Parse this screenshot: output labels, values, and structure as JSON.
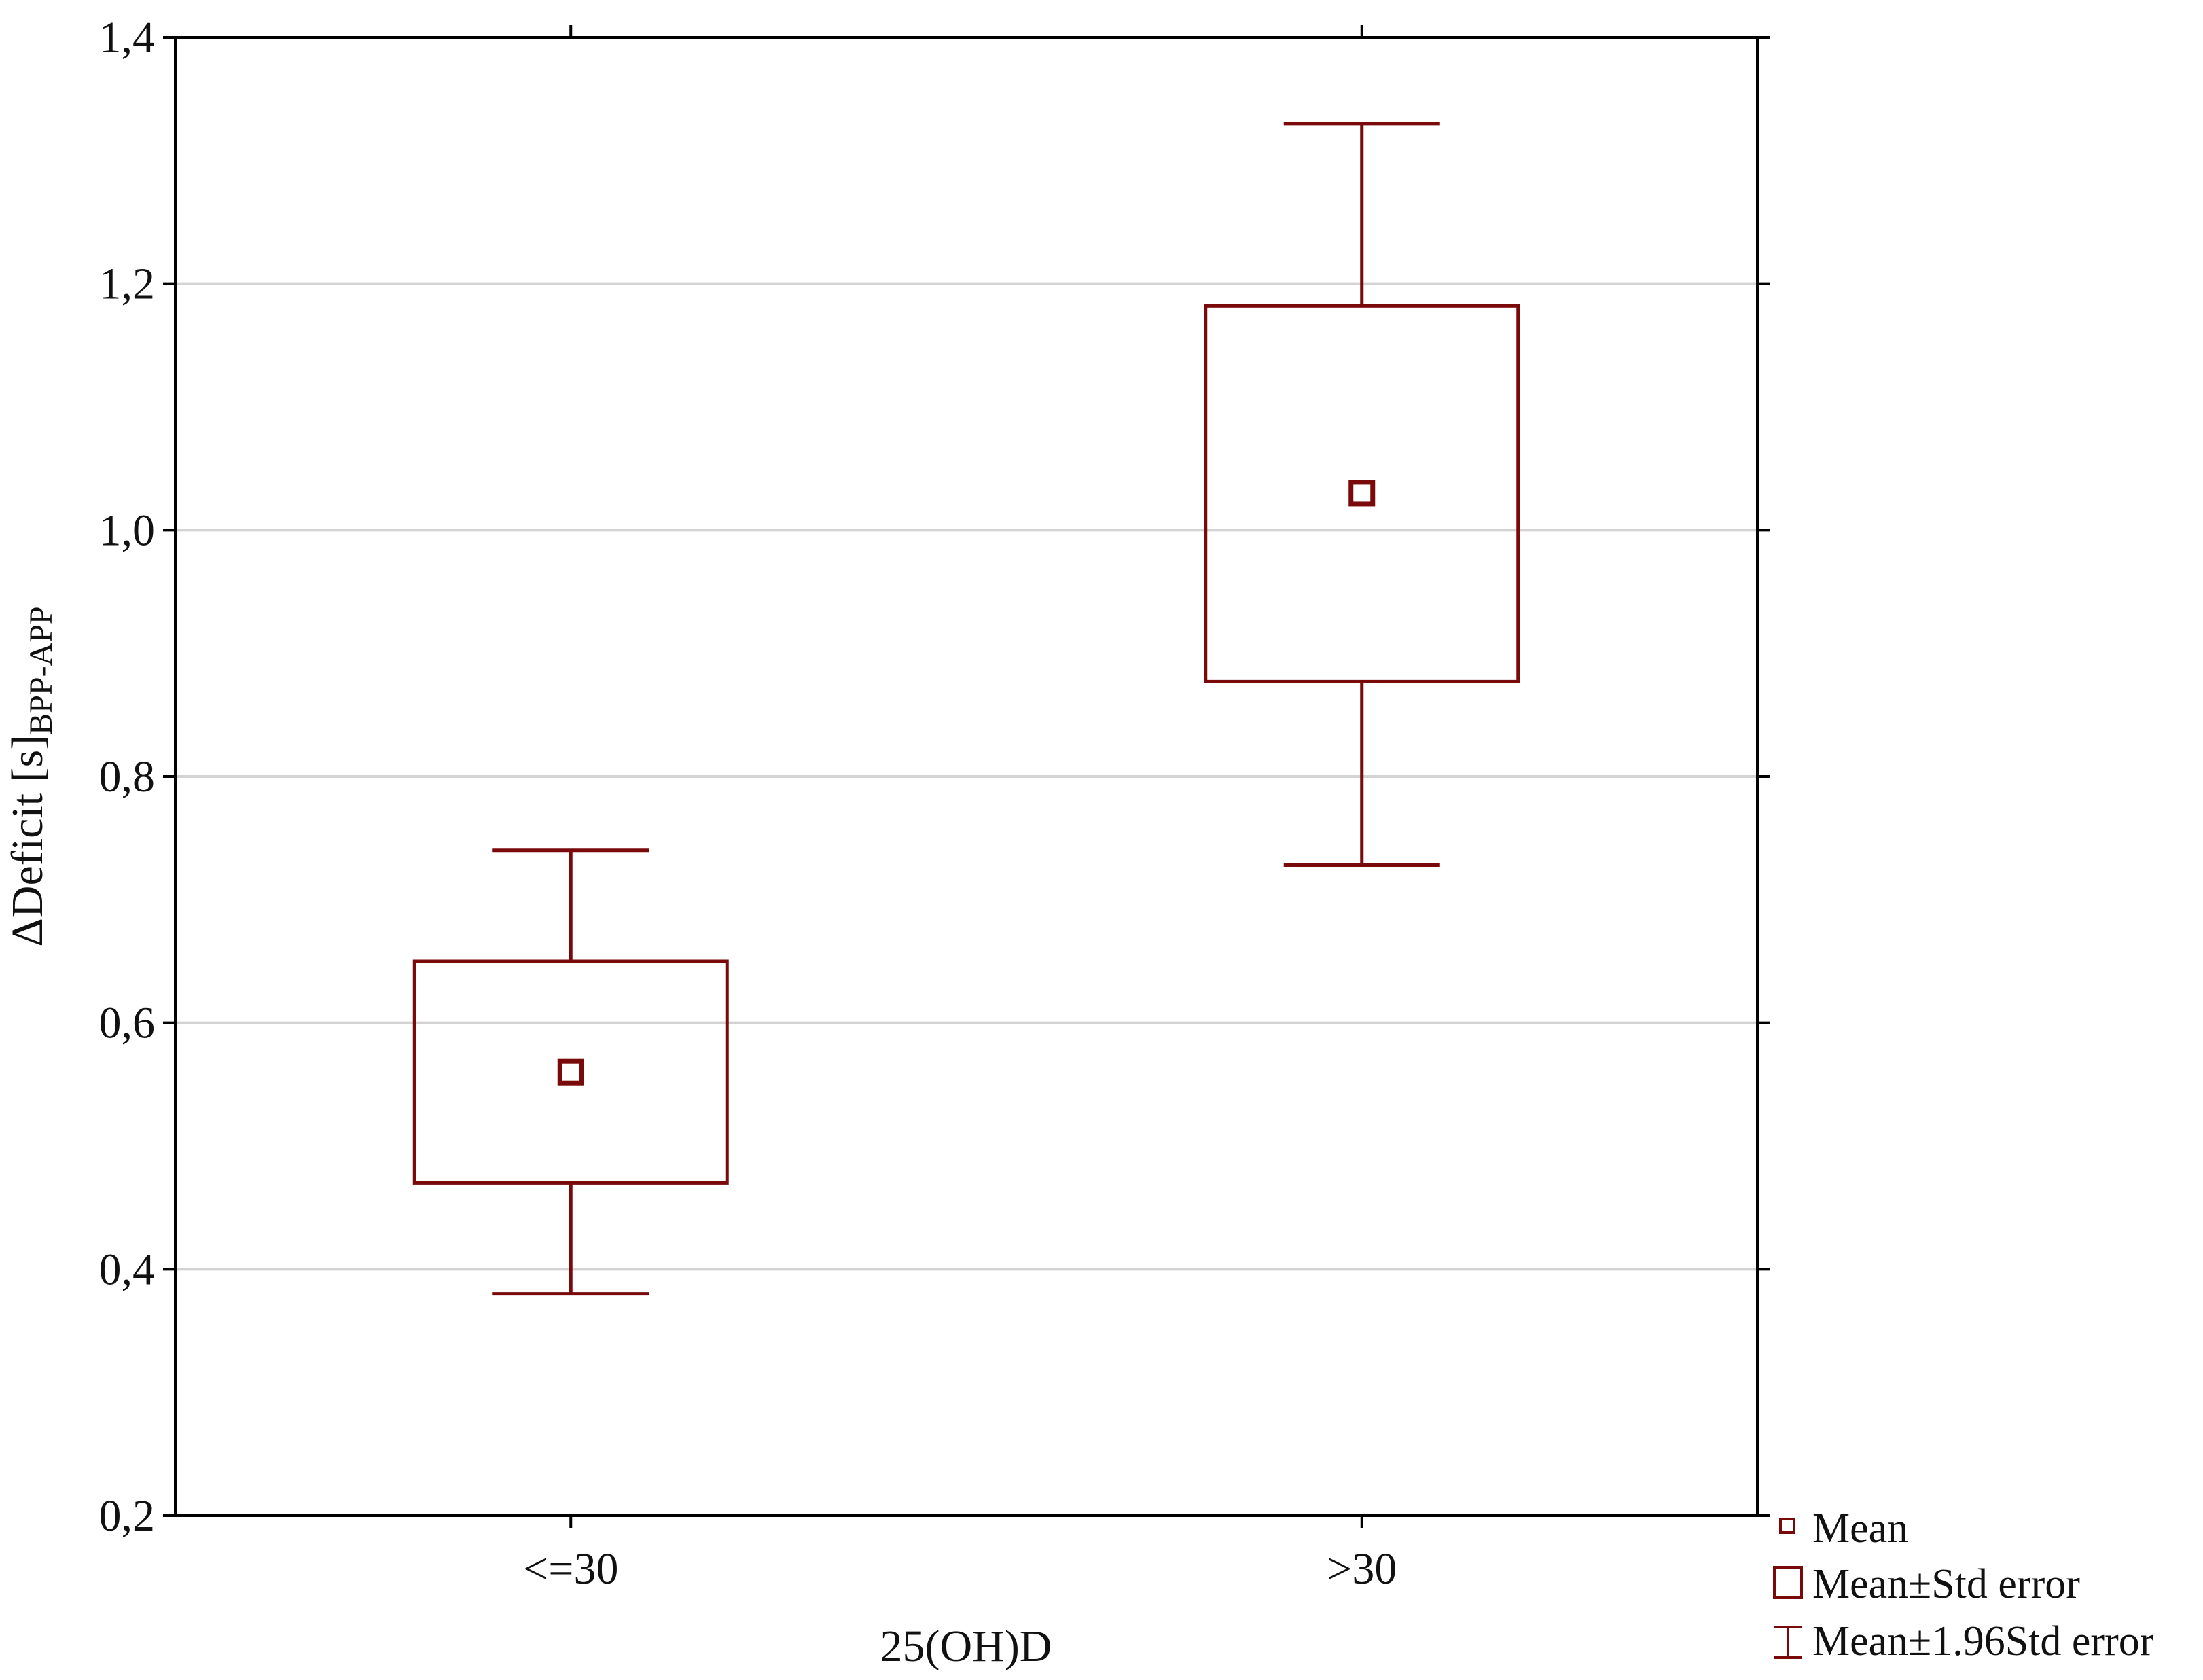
{
  "chart_data": {
    "type": "box",
    "xlabel": "25(OH)D",
    "ylabel": {
      "main": "ΔDeficit [s]",
      "subscript": "BPP-APP"
    },
    "ylim": [
      0.2,
      1.4
    ],
    "yticks": [
      0.2,
      0.4,
      0.6,
      0.8,
      1.0,
      1.2,
      1.4
    ],
    "ytick_labels": [
      "0,2",
      "0,4",
      "0,6",
      "0,8",
      "1,0",
      "1,2",
      "1,4"
    ],
    "categories": [
      "<=30",
      ">30"
    ],
    "groups": [
      {
        "category": "<=30",
        "mean": 0.56,
        "se_low": 0.47,
        "se_high": 0.65,
        "ci_low": 0.38,
        "ci_high": 0.74
      },
      {
        "category": ">30",
        "mean": 1.03,
        "se_low": 0.877,
        "se_high": 1.182,
        "ci_low": 0.728,
        "ci_high": 1.33
      }
    ],
    "grid": "horizontal",
    "legend_position": "bottom-right",
    "legend": [
      {
        "symbol": "mean-marker",
        "label": "Mean"
      },
      {
        "symbol": "box",
        "label": "Mean±Std error"
      },
      {
        "symbol": "whisker",
        "label": "Mean±1.96Std error"
      }
    ],
    "colors": {
      "series": "#7a0a0a",
      "grid": "#d3d3d3",
      "axis": "#000000"
    }
  }
}
